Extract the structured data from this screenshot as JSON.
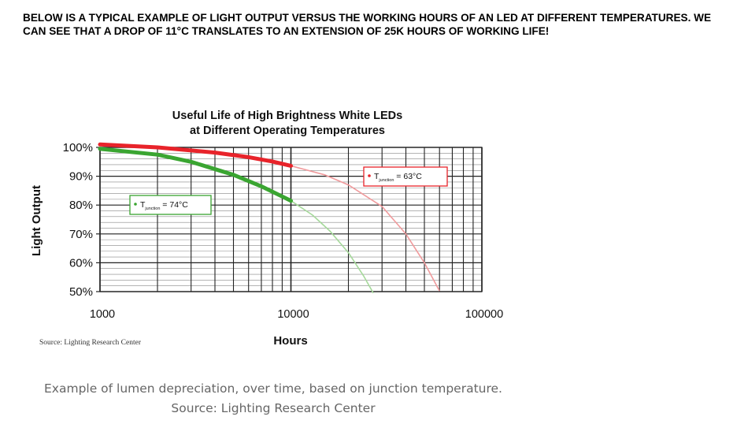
{
  "heading": "BELOW IS A TYPICAL EXAMPLE OF LIGHT OUTPUT VERSUS THE WORKING HOURS OF AN LED AT DIFFERENT TEMPERATURES. WE CAN SEE THAT A DROP OF 11°C TRANSLATES TO AN EXTENSION OF 25K HOURS OF WORKING LIFE!",
  "caption_line1": "Example of lumen depreciation, over time, based on junction temperature.",
  "caption_line2": "Source: Lighting Research Center",
  "chart_data": {
    "type": "line",
    "title_line1": "Useful Life of High Brightness White LEDs",
    "title_line2": "at Different Operating Temperatures",
    "xlabel": "Hours",
    "ylabel": "Light Output",
    "x_scale": "log",
    "xlim": [
      1000,
      100000
    ],
    "ylim": [
      50,
      100
    ],
    "x_ticks": [
      "1000",
      "10000",
      "100000"
    ],
    "y_ticks": [
      "100%",
      "90%",
      "80%",
      "70%",
      "60%",
      "50%"
    ],
    "grid": true,
    "source_note": "Source: Lighting Research Center",
    "series": [
      {
        "name": "T_junction = 63°C",
        "label_main": "T",
        "label_sub": "junction",
        "label_value": " = 63°C",
        "color": "#e8232a",
        "light_color": "#f09a9c",
        "measured": {
          "x": [
            1000,
            2000,
            4000,
            6000,
            8000,
            10000
          ],
          "y": [
            101,
            100,
            98.2,
            96.6,
            95.1,
            93.6
          ]
        },
        "extrapolated": {
          "x": [
            10000,
            15000,
            20000,
            30000,
            40000,
            50000,
            60000
          ],
          "y": [
            93.6,
            90.5,
            87,
            79.5,
            70,
            60,
            50.2
          ]
        }
      },
      {
        "name": "T_junction = 74°C",
        "label_main": "T",
        "label_sub": "junction",
        "label_value": " = 74°C",
        "color": "#3aa531",
        "light_color": "#a6d99b",
        "measured": {
          "x": [
            1000,
            2000,
            3000,
            5000,
            7000,
            10000
          ],
          "y": [
            99.5,
            97.5,
            95,
            90.5,
            86.5,
            81.5
          ]
        },
        "extrapolated": {
          "x": [
            10000,
            13000,
            16000,
            20000,
            24000,
            27000
          ],
          "y": [
            81.5,
            76.5,
            71,
            63.5,
            55.5,
            49.5
          ]
        }
      }
    ]
  }
}
